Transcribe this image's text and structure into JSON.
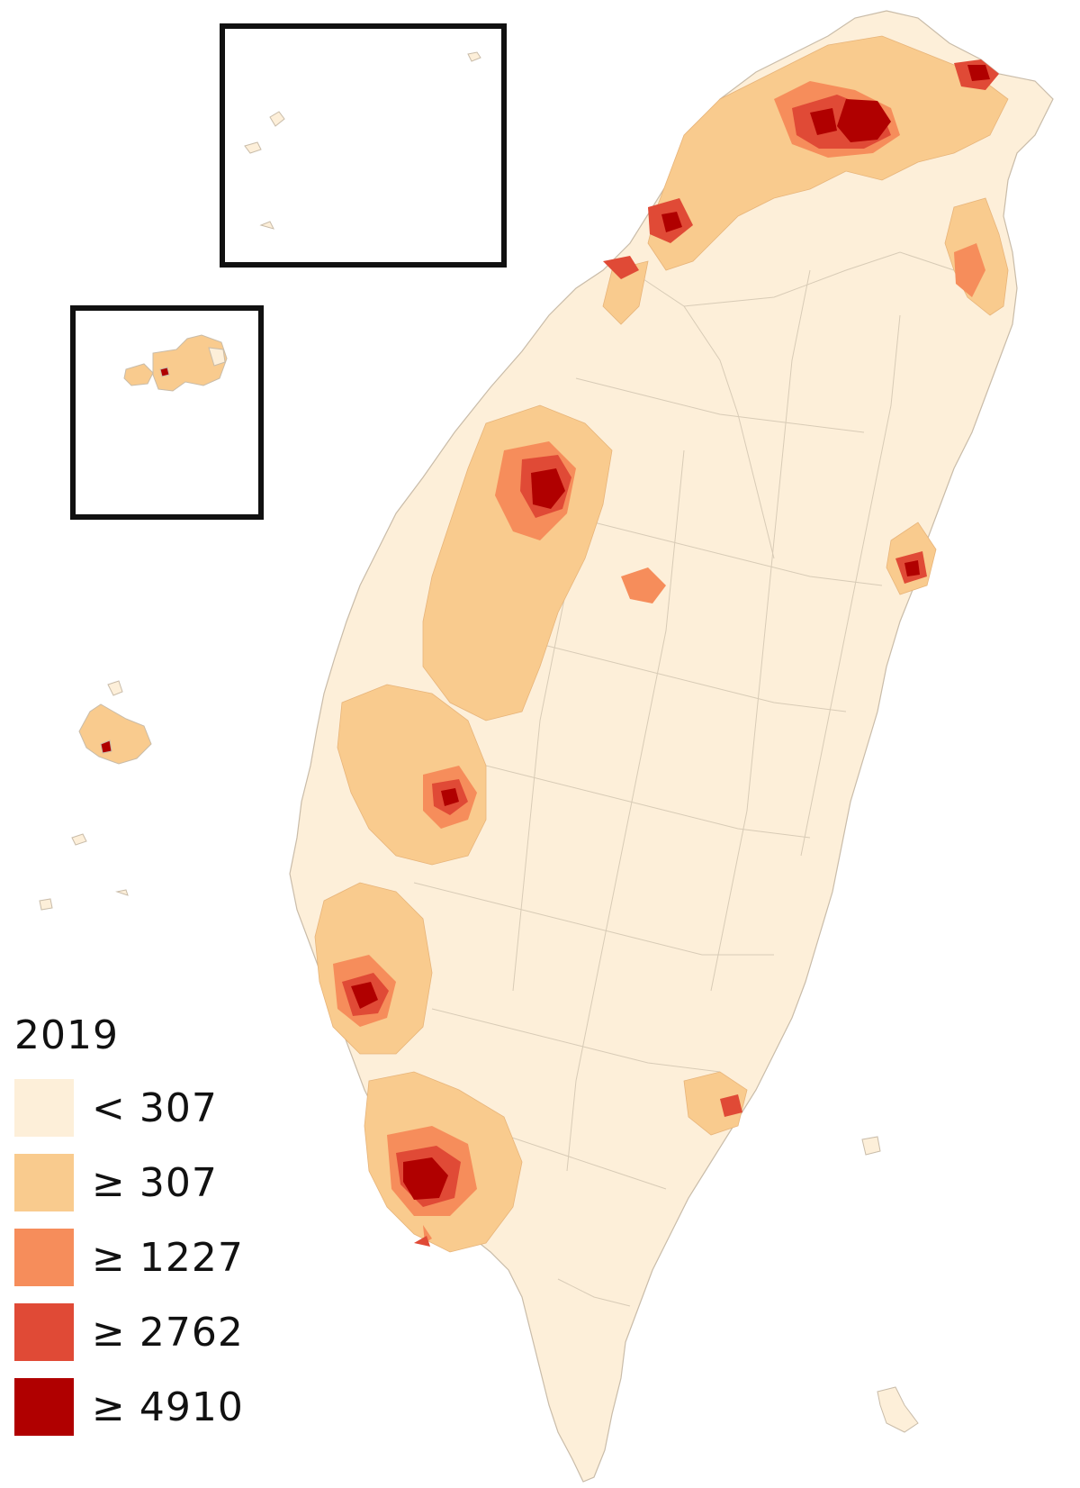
{
  "legend": {
    "title": "2019",
    "classes": [
      {
        "label": "< 307",
        "color": "#fdefd9"
      },
      {
        "label": "≥ 307",
        "color": "#f9cb8e"
      },
      {
        "label": "≥ 1227",
        "color": "#f68d5b"
      },
      {
        "label": "≥ 2762",
        "color": "#e04a36"
      },
      {
        "label": "≥ 4910",
        "color": "#b00000"
      }
    ]
  },
  "colors": {
    "land": "#fdefd9",
    "boundary": "#c9bca9",
    "inset_frame": "#111111"
  }
}
